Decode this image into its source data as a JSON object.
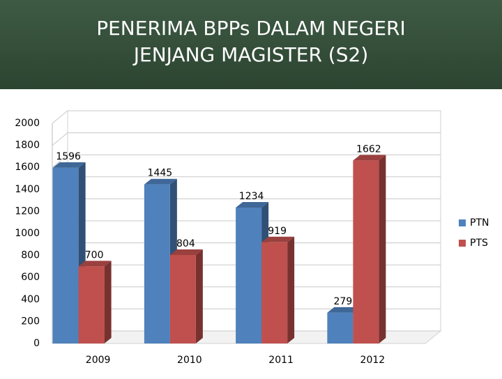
{
  "chart_data": {
    "type": "bar3d",
    "title": [
      "PENERIMA BPPs DALAM NEGERI",
      "JENJANG MAGISTER (S2)"
    ],
    "categories": [
      "2009",
      "2010",
      "2011",
      "2012"
    ],
    "series": [
      {
        "name": "PTN",
        "color": "#4f81bd",
        "values": [
          1596,
          1445,
          1234,
          279
        ]
      },
      {
        "name": "PTS",
        "color": "#c0504d",
        "values": [
          700,
          804,
          919,
          1662
        ]
      }
    ],
    "ylim": [
      0,
      2000
    ],
    "yticks": [
      0,
      200,
      400,
      600,
      800,
      1000,
      1200,
      1400,
      1600,
      1800,
      2000
    ],
    "grid": true,
    "legend": "right"
  }
}
